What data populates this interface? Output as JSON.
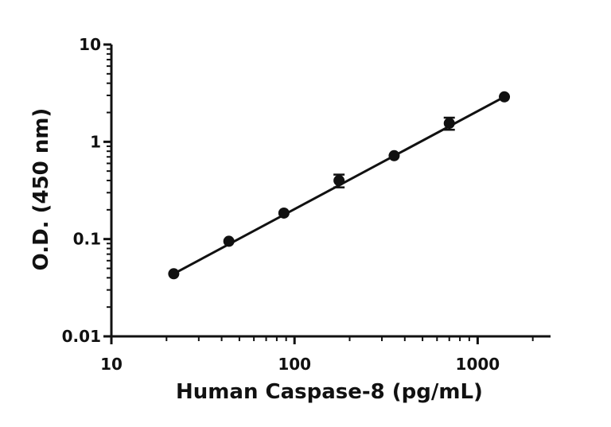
{
  "chart_data": {
    "type": "scatter",
    "title": "",
    "xlabel": "Human Caspase-8 (pg/mL)",
    "ylabel": "O.D. (450 nm)",
    "x_scale": "log",
    "y_scale": "log",
    "xlim": [
      10,
      2500
    ],
    "ylim": [
      0.01,
      10
    ],
    "x_ticks": [
      10,
      100,
      1000
    ],
    "x_tick_labels": [
      "10",
      "100",
      "1000"
    ],
    "y_ticks": [
      0.01,
      0.1,
      1,
      10
    ],
    "y_tick_labels": [
      "0.01",
      "0.1",
      "1",
      "10"
    ],
    "grid": false,
    "legend": "none",
    "series": [
      {
        "x": [
          21.9,
          43.8,
          87.5,
          175,
          350,
          700,
          1400
        ],
        "y": [
          0.044,
          0.095,
          0.185,
          0.4,
          0.72,
          1.55,
          2.9
        ],
        "y_err": [
          0.002,
          0.004,
          0.006,
          0.06,
          0.02,
          0.22,
          0.05
        ]
      }
    ],
    "fit_line": {
      "x": [
        21.9,
        1400
      ],
      "y": [
        0.044,
        2.9
      ]
    },
    "colors": {
      "marker": "#111111",
      "line": "#111111",
      "axis": "#111111"
    }
  }
}
